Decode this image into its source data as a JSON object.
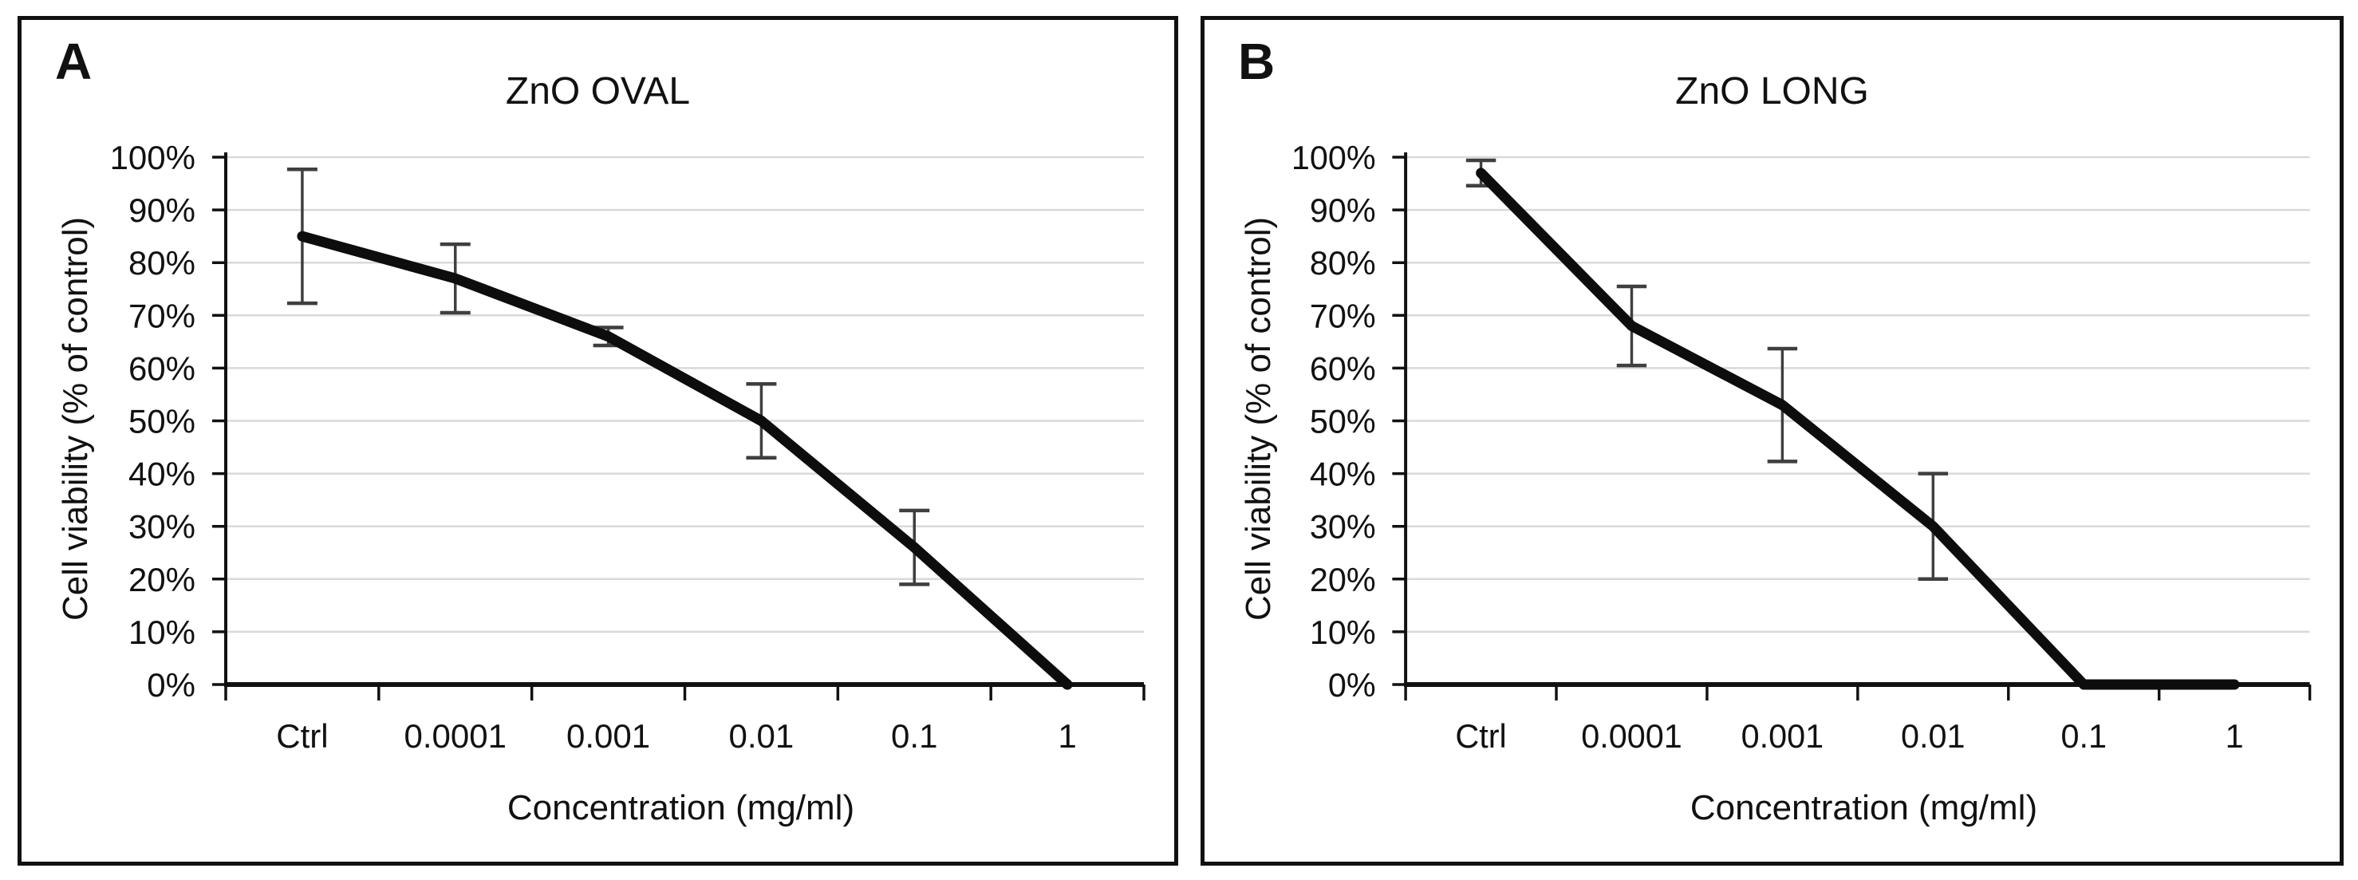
{
  "colors": {
    "background": "#ffffff",
    "panel_border": "#111111",
    "axis": "#111111",
    "grid": "#d9d9d9",
    "line": "#0d0d0d",
    "error_bar": "#3f3f3f",
    "text": "#111111"
  },
  "chart_data": [
    {
      "type": "line",
      "panel_label": "A",
      "title": "ZnO OVAL",
      "xlabel": "Concentration (mg/ml)",
      "ylabel": "Cell viability (% of control)",
      "categories": [
        "Ctrl",
        "0.0001",
        "0.001",
        "0.01",
        "0.1",
        "1"
      ],
      "series": [
        {
          "name": "Cell viability",
          "values": [
            85,
            77,
            66,
            50,
            26,
            0
          ],
          "errors": [
            12.7,
            6.5,
            1.7,
            7,
            7,
            0
          ]
        }
      ],
      "ylim": [
        0,
        100
      ],
      "y_tick_labels": [
        "0%",
        "10%",
        "20%",
        "30%",
        "40%",
        "50%",
        "60%",
        "70%",
        "80%",
        "90%",
        "100%"
      ],
      "grid": true,
      "legend": "none"
    },
    {
      "type": "line",
      "panel_label": "B",
      "title": "ZnO LONG",
      "xlabel": "Concentration (mg/ml)",
      "ylabel": "Cell viability (% of control)",
      "categories": [
        "Ctrl",
        "0.0001",
        "0.001",
        "0.01",
        "0.1",
        "1"
      ],
      "series": [
        {
          "name": "Cell viability",
          "values": [
            97,
            68,
            53,
            30,
            0,
            0
          ],
          "errors": [
            2.4,
            7.5,
            10.7,
            10,
            0,
            0
          ]
        }
      ],
      "ylim": [
        0,
        100
      ],
      "y_tick_labels": [
        "0%",
        "10%",
        "20%",
        "30%",
        "40%",
        "50%",
        "60%",
        "70%",
        "80%",
        "90%",
        "100%"
      ],
      "grid": true,
      "legend": "none"
    }
  ]
}
